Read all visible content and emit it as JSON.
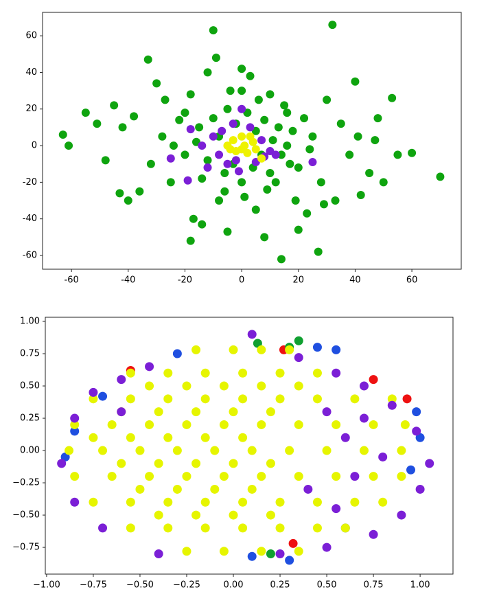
{
  "chart_data": [
    {
      "type": "scatter",
      "xlim": [
        -70.2,
        77.4
      ],
      "ylim": [
        -67.5,
        72.8
      ],
      "xticks": [
        -60,
        -40,
        -20,
        0,
        20,
        40,
        60
      ],
      "yticks": [
        -60,
        -40,
        -20,
        0,
        20,
        40,
        60
      ],
      "series": [
        {
          "color": "#0fa40f",
          "x": [
            -63,
            -61,
            -55,
            -51,
            -48,
            -45,
            -43,
            -40,
            -42,
            -38,
            -36,
            -33,
            -30,
            -32,
            -28,
            -25,
            -27,
            -22,
            -20,
            -18,
            -17,
            -14,
            -18,
            -10,
            -9,
            -12,
            -8,
            -5,
            -4,
            0,
            3,
            5,
            8,
            10,
            12,
            14,
            15,
            17,
            19,
            20,
            22,
            23,
            25,
            27,
            28,
            29,
            30,
            32,
            33,
            35,
            38,
            40,
            41,
            42,
            45,
            47,
            48,
            50,
            53,
            55,
            60,
            70,
            -15,
            -12,
            -10,
            -8,
            -6,
            -5,
            -3,
            -2,
            0,
            2,
            4,
            5,
            7,
            8,
            10,
            11,
            13,
            14,
            16,
            18,
            -14,
            -20,
            20,
            -24,
            24,
            6,
            -6,
            0,
            1,
            -16,
            16,
            9
          ],
          "y": [
            6,
            0,
            18,
            12,
            -8,
            22,
            -26,
            -30,
            10,
            16,
            -25,
            47,
            34,
            -10,
            5,
            -20,
            25,
            14,
            -5,
            28,
            -40,
            -43,
            -52,
            63,
            48,
            40,
            -30,
            -47,
            30,
            42,
            38,
            -35,
            -50,
            28,
            -20,
            -62,
            22,
            -10,
            -30,
            -46,
            15,
            -37,
            5,
            -58,
            -20,
            -32,
            25,
            66,
            -30,
            12,
            -5,
            35,
            5,
            -27,
            -15,
            3,
            15,
            -20,
            26,
            -5,
            -4,
            -17,
            10,
            -8,
            15,
            5,
            -15,
            20,
            -10,
            12,
            -20,
            18,
            -12,
            8,
            -5,
            14,
            -15,
            3,
            10,
            -5,
            0,
            8,
            -18,
            18,
            -12,
            0,
            -2,
            25,
            -25,
            30,
            -28,
            2,
            18,
            -24
          ]
        },
        {
          "color": "#7b1fd6",
          "x": [
            -18,
            -14,
            -12,
            -10,
            -8,
            -7,
            -5,
            -3,
            -2,
            0,
            3,
            5,
            7,
            10,
            12,
            -19,
            -1,
            25,
            -25,
            8
          ],
          "y": [
            9,
            0,
            -12,
            5,
            -5,
            8,
            -10,
            12,
            -8,
            20,
            10,
            -9,
            3,
            -3,
            -5,
            -19,
            -14,
            -9,
            -7,
            -6
          ]
        },
        {
          "color": "#eef200",
          "x": [
            -5,
            -3,
            -2,
            0,
            1,
            2,
            4,
            5,
            -4,
            3,
            7,
            0
          ],
          "y": [
            0,
            3,
            -3,
            5,
            0,
            -4,
            2,
            -2,
            -2,
            5,
            -7,
            -2
          ]
        }
      ]
    },
    {
      "type": "scatter",
      "xlim": [
        -1.007,
        1.176
      ],
      "ylim": [
        -0.957,
        1.032
      ],
      "xticks": [
        {
          "value": -1,
          "label": "−1.00"
        },
        {
          "value": -0.75,
          "label": "−0.75"
        },
        {
          "value": -0.5,
          "label": "−0.50"
        },
        {
          "value": -0.25,
          "label": "−0.25"
        },
        {
          "value": 0,
          "label": "0.00"
        },
        {
          "value": 0.25,
          "label": "0.25"
        },
        {
          "value": 0.5,
          "label": "0.50"
        },
        {
          "value": 0.75,
          "label": "0.75"
        },
        {
          "value": 1,
          "label": "1.00"
        }
      ],
      "yticks": [
        {
          "value": -0.75,
          "label": "−0.75"
        },
        {
          "value": -0.5,
          "label": "−0.50"
        },
        {
          "value": -0.25,
          "label": "−0.25"
        },
        {
          "value": 0,
          "label": "0.00"
        },
        {
          "value": 0.25,
          "label": "0.25"
        },
        {
          "value": 0.5,
          "label": "0.50"
        },
        {
          "value": 0.75,
          "label": "0.75"
        },
        {
          "value": 1,
          "label": "1.00"
        }
      ],
      "series": [
        {
          "color": "#1f4fe0",
          "x": [
            1.0,
            0.95,
            0.55,
            0.45,
            -0.85,
            -0.9,
            0.3,
            0.1,
            0.6,
            -0.3,
            0.98,
            -0.7
          ],
          "y": [
            0.1,
            -0.15,
            0.78,
            0.8,
            0.15,
            -0.05,
            -0.85,
            -0.82,
            -0.6,
            0.75,
            0.3,
            0.42
          ]
        },
        {
          "color": "#ee1111",
          "x": [
            -0.55,
            0.93,
            0.32,
            0.27,
            0.75
          ],
          "y": [
            0.62,
            0.4,
            -0.72,
            0.78,
            0.55
          ]
        },
        {
          "color": "#10a030",
          "x": [
            0.35,
            0.2,
            0.3,
            0.13
          ],
          "y": [
            0.85,
            -0.8,
            0.8,
            0.83
          ]
        },
        {
          "color": "#e6f500",
          "x": [
            -0.2,
            0,
            0.15,
            0.3,
            -0.55,
            -0.35,
            -0.15,
            0.05,
            0.25,
            0.45,
            -0.75,
            -0.55,
            -0.35,
            -0.15,
            0.05,
            0.25,
            0.45,
            0.65,
            0.85,
            -0.85,
            -0.65,
            -0.45,
            -0.25,
            -0.05,
            0.15,
            0.35,
            0.55,
            0.75,
            0.92,
            -0.88,
            -0.7,
            -0.5,
            -0.3,
            -0.1,
            0.1,
            0.3,
            0.5,
            0.7,
            0.9,
            -0.85,
            -0.65,
            -0.45,
            -0.25,
            -0.05,
            0.15,
            0.35,
            0.55,
            0.75,
            0.9,
            -0.75,
            -0.55,
            -0.35,
            -0.15,
            0.05,
            0.25,
            0.45,
            0.65,
            0.8,
            -0.55,
            -0.35,
            -0.15,
            0.05,
            0.25,
            0.45,
            0.6,
            -0.25,
            -0.05,
            0.15,
            0.35,
            -0.45,
            -0.25,
            -0.05,
            0.15,
            0.35,
            -0.75,
            -0.55,
            -0.35,
            -0.15,
            0.05,
            -0.6,
            -0.4,
            -0.2,
            0,
            0.2,
            -0.5,
            -0.3,
            -0.1,
            0.1,
            -0.6,
            -0.4,
            -0.2,
            0,
            0.2,
            -0.4,
            -0.2,
            0,
            0.2
          ],
          "y": [
            0.78,
            0.78,
            0.78,
            0.78,
            0.6,
            0.6,
            0.6,
            0.6,
            0.6,
            0.6,
            0.4,
            0.4,
            0.4,
            0.4,
            0.4,
            0.4,
            0.4,
            0.4,
            0.4,
            0.2,
            0.2,
            0.2,
            0.2,
            0.2,
            0.2,
            0.2,
            0.2,
            0.2,
            0.2,
            0,
            0,
            0,
            0,
            0,
            0,
            0,
            0,
            0,
            0,
            -0.2,
            -0.2,
            -0.2,
            -0.2,
            -0.2,
            -0.2,
            -0.2,
            -0.2,
            -0.2,
            -0.2,
            -0.4,
            -0.4,
            -0.4,
            -0.4,
            -0.4,
            -0.4,
            -0.4,
            -0.4,
            -0.4,
            -0.6,
            -0.6,
            -0.6,
            -0.6,
            -0.6,
            -0.6,
            -0.6,
            -0.78,
            -0.78,
            -0.78,
            -0.78,
            0.5,
            0.5,
            0.5,
            0.5,
            0.5,
            0.1,
            0.1,
            0.1,
            0.1,
            0.1,
            -0.1,
            -0.1,
            -0.1,
            -0.1,
            -0.1,
            -0.3,
            -0.3,
            -0.3,
            -0.3,
            0.3,
            0.3,
            0.3,
            0.3,
            0.3,
            -0.5,
            -0.5,
            -0.5,
            -0.5
          ]
        },
        {
          "color": "#7b1fd6",
          "x": [
            -0.85,
            -0.75,
            -0.6,
            -0.45,
            0.1,
            0.35,
            0.55,
            0.7,
            0.85,
            0.98,
            1.05,
            1.0,
            0.9,
            0.75,
            0.5,
            0.25,
            -0.4,
            -0.7,
            -0.85,
            -0.92,
            0.6,
            0.65,
            0.5,
            0.55,
            -0.6,
            0.4,
            0.7,
            0.8
          ],
          "y": [
            0.25,
            0.45,
            0.55,
            0.65,
            0.9,
            0.72,
            0.6,
            0.5,
            0.35,
            0.15,
            -0.1,
            -0.3,
            -0.5,
            -0.65,
            -0.75,
            -0.8,
            -0.8,
            -0.6,
            -0.4,
            -0.1,
            0.1,
            -0.2,
            0.3,
            -0.45,
            0.3,
            -0.3,
            0.25,
            -0.05
          ]
        }
      ]
    }
  ]
}
